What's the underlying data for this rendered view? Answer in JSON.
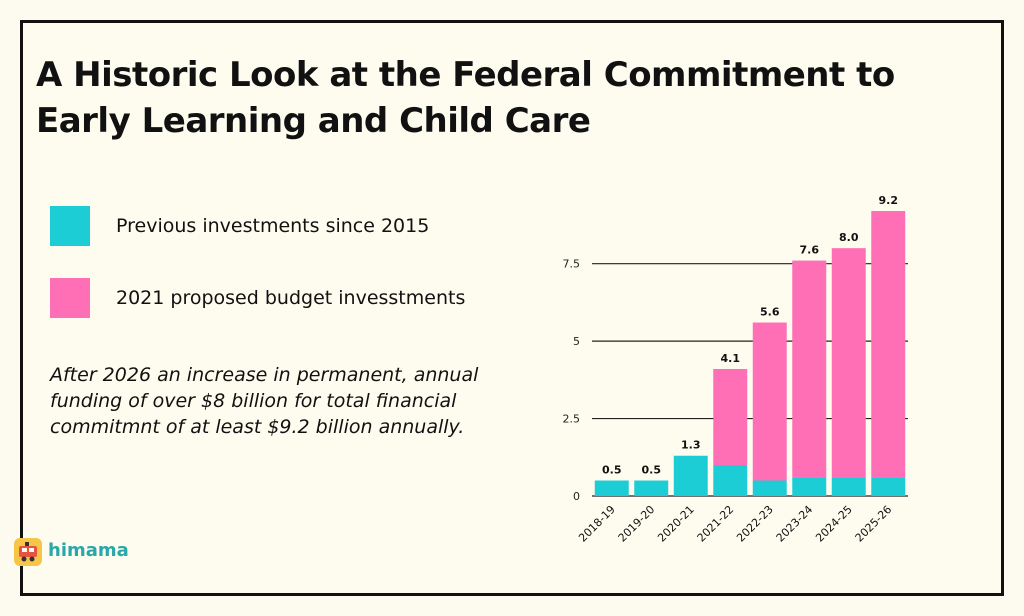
{
  "title": "A Historic Look at the Federal Commitment to Early Learning and Child Care",
  "legend": [
    {
      "label": "Previous investments since 2015",
      "color": "#1ccdd6"
    },
    {
      "label": "2021 proposed budget invesstments",
      "color": "#ff6fb5"
    }
  ],
  "note": "After 2026 an increase in permanent, annual funding of over $8 billion for total financial commitmnt of at least $9.2 billion annually.",
  "logo": {
    "text": "himama",
    "icon": "train-icon"
  },
  "chart_data": {
    "type": "bar",
    "stacked": true,
    "categories": [
      "2018-19",
      "2019-20",
      "2020-21",
      "2021-22",
      "2022-23",
      "2023-24",
      "2024-25",
      "2025-26"
    ],
    "series": [
      {
        "values": [
          0.5,
          0.5,
          1.3,
          1.0,
          0.5,
          0.6,
          0.6,
          0.6
        ],
        "color": "#1ccdd6"
      },
      {
        "values": [
          0,
          0,
          0,
          3.1,
          5.1,
          7.0,
          7.4,
          8.6
        ],
        "color": "#ff6fb5"
      }
    ],
    "totals": [
      "0.5",
      "0.5",
      "1.3",
      "4.1",
      "5.6",
      "7.6",
      "8.0",
      "9.2"
    ],
    "ytick_values": [
      0,
      2.5,
      5,
      7.5
    ],
    "ytick_labels": [
      "0",
      "2.5",
      "5",
      "7.5"
    ],
    "ylim": [
      0,
      9.2
    ],
    "grid": true
  }
}
